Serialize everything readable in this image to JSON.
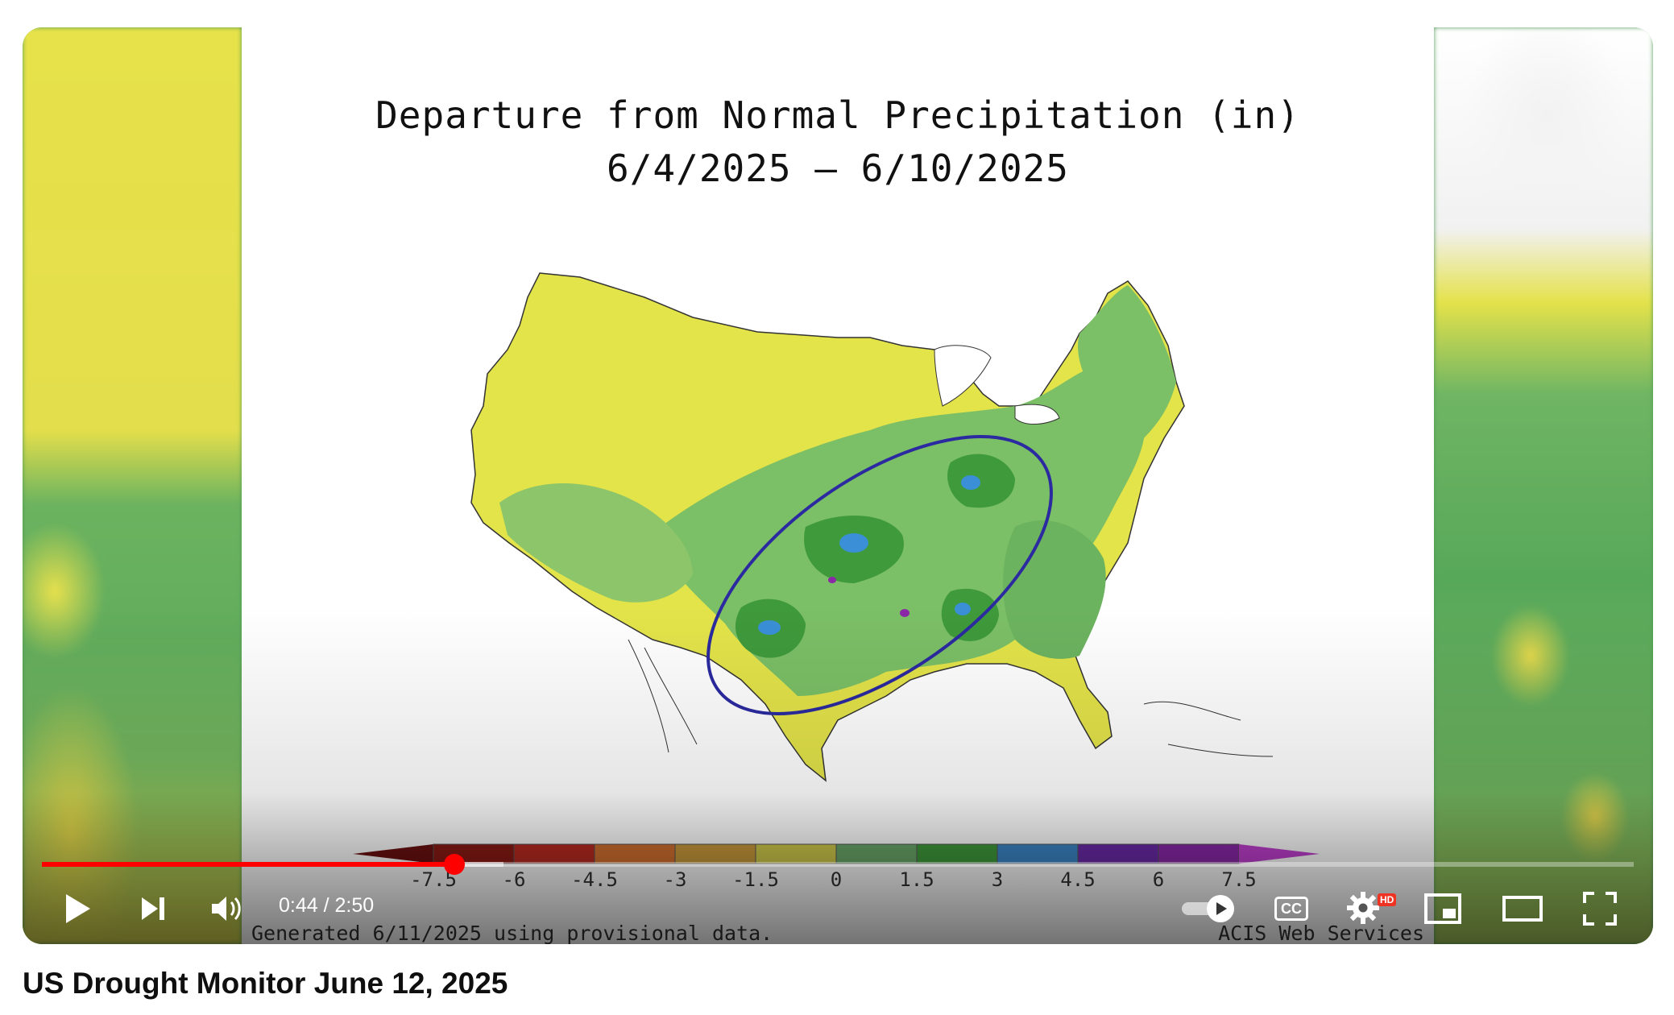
{
  "video": {
    "title": "US Drought Monitor June 12, 2025",
    "time_current": "0:44",
    "time_separator": " / ",
    "time_total": "2:50",
    "progress_fraction": 0.259,
    "buffer_fraction": 0.29
  },
  "frame": {
    "title_line1": "Departure from Normal Precipitation (in)",
    "title_line2": "6/4/2025 – 6/10/2025",
    "footer_left": "Generated 6/11/2025 using provisional data.",
    "footer_right": "ACIS Web Services",
    "legend_ticks": [
      "-7.5",
      "-6",
      "-4.5",
      "-3",
      "-1.5",
      "0",
      "1.5",
      "3",
      "4.5",
      "6",
      "7.5"
    ],
    "legend_colors": [
      "#6b1010",
      "#8b1a14",
      "#b82a20",
      "#d2702f",
      "#c99a3c",
      "#cfc94b",
      "#6aa86a",
      "#3f9a3b",
      "#3b86c7",
      "#6a2aa8",
      "#8a28a8",
      "#c03fcf"
    ]
  },
  "controls": {
    "play_icon": "play-icon",
    "next_icon": "next-icon",
    "volume_icon": "volume-icon",
    "autoplay_icon": "autoplay-toggle-icon",
    "cc_label": "CC",
    "settings_badge": "HD",
    "miniplayer_icon": "miniplayer-icon",
    "theater_icon": "theater-icon",
    "fullscreen_icon": "fullscreen-icon"
  },
  "colors": {
    "accent": "#ff0000",
    "dry": "#e3e34a",
    "wet_light": "#7bbf66",
    "wet": "#3f9a3b",
    "very_wet": "#3a8fd6",
    "ellipse": "#2b2aa0"
  }
}
